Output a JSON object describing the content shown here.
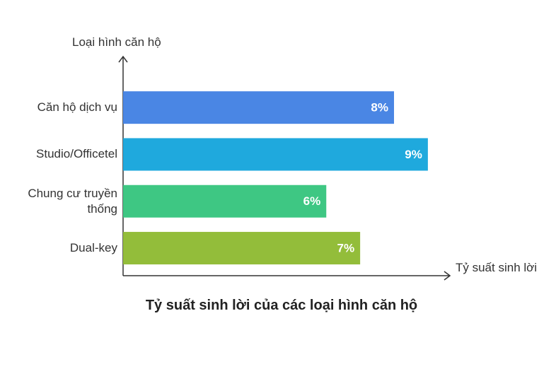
{
  "chart_data": {
    "type": "hbar",
    "title": "Tỷ suất sinh lời của các loại hình căn hộ",
    "x_label": "Tỷ suất sinh lời",
    "y_label": "Loại hình căn hộ",
    "categories": [
      "Căn hộ dịch vụ",
      "Studio/Officetel",
      "Chung cư truyền thống",
      "Dual-key"
    ],
    "values": [
      8,
      9,
      6,
      7
    ],
    "value_labels": [
      "8%",
      "9%",
      "6%",
      "7%"
    ],
    "colors": [
      "#4a86e4",
      "#1fa9dd",
      "#3ec783",
      "#93bd3a"
    ],
    "xlim": [
      0,
      9.65
    ]
  }
}
